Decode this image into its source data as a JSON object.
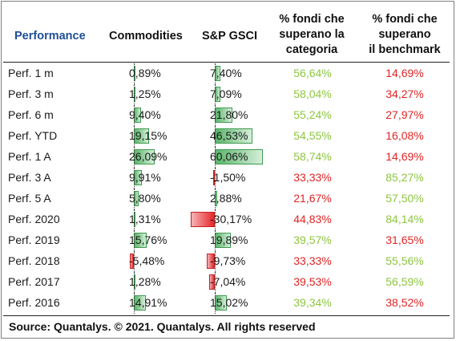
{
  "headers": {
    "performance": "Performance",
    "commodities": "Commodities",
    "sp_gsci": "S&P GSCI",
    "pct_categoria": [
      "% fondi che",
      "superano la",
      "categoria"
    ],
    "pct_benchmark": [
      "% fondi che",
      "superano",
      "il benchmark"
    ]
  },
  "rows": [
    {
      "label": "Perf. 1 m",
      "commodities": "0,89%",
      "commodities_value": 0.89,
      "gsci": "7,40%",
      "gsci_value": 7.4,
      "categoria": "56,64%",
      "categoria_status": "green",
      "benchmark": "14,69%",
      "benchmark_status": "red"
    },
    {
      "label": "Perf. 3 m",
      "commodities": "1,25%",
      "commodities_value": 1.25,
      "gsci": "7,09%",
      "gsci_value": 7.09,
      "categoria": "58,04%",
      "categoria_status": "green",
      "benchmark": "34,27%",
      "benchmark_status": "red"
    },
    {
      "label": "Perf. 6 m",
      "commodities": "9,40%",
      "commodities_value": 9.4,
      "gsci": "21,80%",
      "gsci_value": 21.8,
      "categoria": "55,24%",
      "categoria_status": "green",
      "benchmark": "27,97%",
      "benchmark_status": "red"
    },
    {
      "label": "Perf. YTD",
      "commodities": "19,15%",
      "commodities_value": 19.15,
      "gsci": "46,53%",
      "gsci_value": 46.53,
      "categoria": "54,55%",
      "categoria_status": "green",
      "benchmark": "16,08%",
      "benchmark_status": "red"
    },
    {
      "label": "Perf. 1 A",
      "commodities": "26,09%",
      "commodities_value": 26.09,
      "gsci": "60,06%",
      "gsci_value": 60.06,
      "categoria": "58,74%",
      "categoria_status": "green",
      "benchmark": "14,69%",
      "benchmark_status": "red"
    },
    {
      "label": "Perf. 3 A",
      "commodities": "9,91%",
      "commodities_value": 9.91,
      "gsci": "-1,50%",
      "gsci_value": -1.5,
      "categoria": "33,33%",
      "categoria_status": "red",
      "benchmark": "85,27%",
      "benchmark_status": "green"
    },
    {
      "label": "Perf. 5 A",
      "commodities": "5,80%",
      "commodities_value": 5.8,
      "gsci": "2,88%",
      "gsci_value": 2.88,
      "categoria": "21,67%",
      "categoria_status": "red",
      "benchmark": "57,50%",
      "benchmark_status": "green"
    },
    {
      "label": "Perf. 2020",
      "commodities": "1,31%",
      "commodities_value": 1.31,
      "gsci": "-30,17%",
      "gsci_value": -30.17,
      "categoria": "44,83%",
      "categoria_status": "red",
      "benchmark": "84,14%",
      "benchmark_status": "green"
    },
    {
      "label": "Perf. 2019",
      "commodities": "15,76%",
      "commodities_value": 15.76,
      "gsci": "19,89%",
      "gsci_value": 19.89,
      "categoria": "39,57%",
      "categoria_status": "green",
      "benchmark": "31,65%",
      "benchmark_status": "red"
    },
    {
      "label": "Perf. 2018",
      "commodities": "-5,48%",
      "commodities_value": -5.48,
      "gsci": "-9,73%",
      "gsci_value": -9.73,
      "categoria": "33,33%",
      "categoria_status": "red",
      "benchmark": "55,56%",
      "benchmark_status": "green"
    },
    {
      "label": "Perf. 2017",
      "commodities": "1,28%",
      "commodities_value": 1.28,
      "gsci": "-7,04%",
      "gsci_value": -7.04,
      "categoria": "39,53%",
      "categoria_status": "red",
      "benchmark": "56,59%",
      "benchmark_status": "green"
    },
    {
      "label": "Perf. 2016",
      "commodities": "14,91%",
      "commodities_value": 14.91,
      "gsci": "15,02%",
      "gsci_value": 15.02,
      "categoria": "39,34%",
      "categoria_status": "green",
      "benchmark": "38,52%",
      "benchmark_status": "red"
    }
  ],
  "colors": {
    "header_accent": "#1f4e97",
    "positive": "#8dc63f",
    "negative": "#e02424",
    "bar_positive": "#5bb56a",
    "bar_negative": "#e8262b"
  },
  "footer": {
    "source": "Source: Quantalys. © 2021. Quantalys. All rights reserved"
  }
}
